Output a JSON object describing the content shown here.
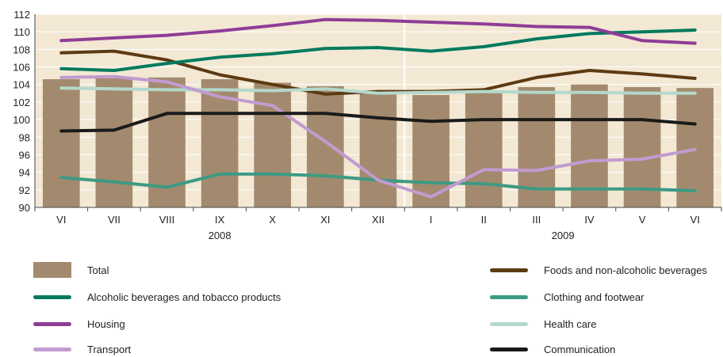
{
  "chart_data": {
    "type": "bar+line",
    "title": "",
    "xlabel": "",
    "ylabel": "",
    "ylim": [
      90,
      112
    ],
    "yticks": [
      90,
      92,
      94,
      96,
      98,
      100,
      102,
      104,
      106,
      108,
      110,
      112
    ],
    "categories": [
      "VI",
      "VII",
      "VIII",
      "IX",
      "X",
      "XI",
      "XII",
      "I",
      "II",
      "III",
      "IV",
      "V",
      "VI"
    ],
    "year_labels": [
      {
        "label": "2008",
        "from": 0,
        "to": 6
      },
      {
        "label": "2009",
        "from": 7,
        "to": 12
      }
    ],
    "grid": true,
    "legend_placement": "bottom",
    "bars": {
      "name": "Total",
      "color": "#a38a6e",
      "values": [
        104.6,
        104.7,
        104.8,
        104.6,
        104.2,
        103.8,
        103.1,
        102.8,
        103.2,
        103.7,
        104.0,
        103.7,
        103.6
      ]
    },
    "series": [
      {
        "name": "Foods and non-alcoholic beverages",
        "color": "#5c3a12",
        "values": [
          107.6,
          107.8,
          106.8,
          105.1,
          104.0,
          102.9,
          103.2,
          103.2,
          103.4,
          104.8,
          105.6,
          105.2,
          104.7
        ]
      },
      {
        "name": "Alcoholic beverages and tobacco products",
        "color": "#007a5e",
        "values": [
          105.8,
          105.6,
          106.4,
          107.1,
          107.5,
          108.1,
          108.2,
          107.8,
          108.3,
          109.2,
          109.8,
          110.0,
          110.2
        ]
      },
      {
        "name": "Clothing and footwear",
        "color": "#3e9a83",
        "values": [
          93.4,
          92.9,
          92.3,
          93.8,
          93.8,
          93.6,
          93.1,
          92.8,
          92.7,
          92.1,
          92.1,
          92.1,
          91.9
        ]
      },
      {
        "name": "Housing",
        "color": "#8e3d96",
        "values": [
          109.0,
          109.3,
          109.6,
          110.1,
          110.7,
          111.4,
          111.3,
          111.1,
          110.9,
          110.6,
          110.5,
          109.0,
          108.7
        ]
      },
      {
        "name": "Health care",
        "color": "#b4d8cc",
        "values": [
          103.6,
          103.5,
          103.4,
          103.4,
          103.3,
          103.5,
          103.0,
          103.1,
          103.2,
          103.1,
          103.1,
          103.0,
          103.0
        ]
      },
      {
        "name": "Transport",
        "color": "#c29bd0",
        "values": [
          104.8,
          104.9,
          104.3,
          102.6,
          101.6,
          97.5,
          93.1,
          91.2,
          94.3,
          94.2,
          95.3,
          95.5,
          96.6
        ]
      },
      {
        "name": "Communication",
        "color": "#1a1a1a",
        "values": [
          98.7,
          98.8,
          100.7,
          100.7,
          100.7,
          100.7,
          100.2,
          99.8,
          100.0,
          100.0,
          100.0,
          100.0,
          99.5
        ]
      }
    ]
  },
  "legend": {
    "left": [
      {
        "label": "Total",
        "kind": "box",
        "color": "#a38a6e"
      },
      {
        "label": "Alcoholic beverages and tobacco products",
        "kind": "line",
        "color": "#007a5e"
      },
      {
        "label": "Housing",
        "kind": "line",
        "color": "#8e3d96"
      },
      {
        "label": "Transport",
        "kind": "line",
        "color": "#c29bd0"
      }
    ],
    "right": [
      {
        "label": "Foods and non-alcoholic beverages",
        "kind": "line",
        "color": "#5c3a12"
      },
      {
        "label": "Clothing and footwear",
        "kind": "line",
        "color": "#3e9a83"
      },
      {
        "label": "Health care",
        "kind": "line",
        "color": "#b4d8cc"
      },
      {
        "label": "Communication",
        "kind": "line",
        "color": "#1a1a1a"
      }
    ]
  },
  "colors": {
    "plot_background": "#f3e8d4",
    "grid": "#ffffff",
    "year_divider": "#ffffff",
    "axis": "#444444"
  }
}
